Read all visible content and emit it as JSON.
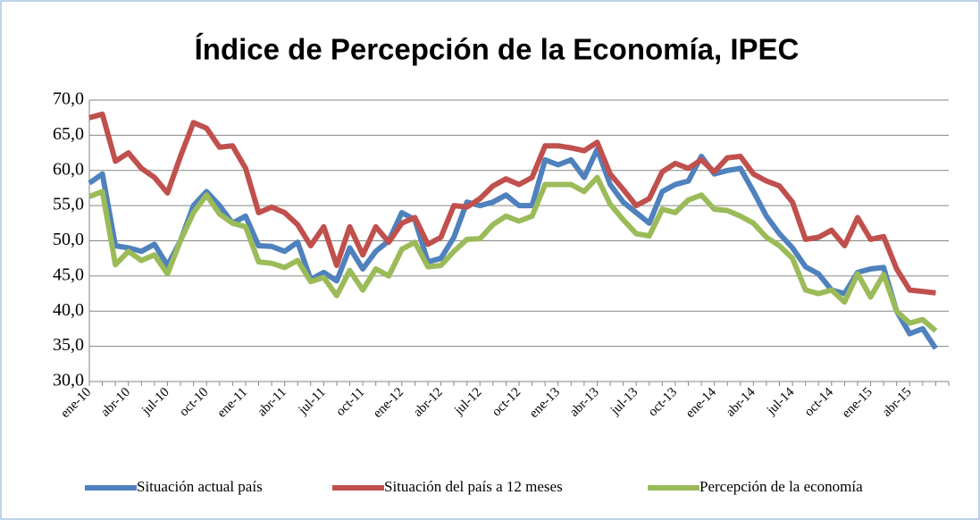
{
  "chart_data": {
    "type": "line",
    "title": "Índice de Percepción de la Economía, IPEC",
    "categories": [
      "ene-10",
      null,
      null,
      "abr-10",
      null,
      null,
      "jul-10",
      null,
      null,
      "oct-10",
      null,
      null,
      "ene-11",
      null,
      null,
      "abr-11",
      null,
      null,
      "jul-11",
      null,
      null,
      "oct-11",
      null,
      null,
      "ene-12",
      null,
      null,
      "abr-12",
      null,
      null,
      "jul-12",
      null,
      null,
      "oct-12",
      null,
      null,
      "ene-13",
      null,
      null,
      "abr-13",
      null,
      null,
      "jul-13",
      null,
      null,
      "oct-13",
      null,
      null,
      "ene-14",
      null,
      null,
      "abr-14",
      null,
      null,
      "jul-14",
      null,
      null,
      "oct-14",
      null,
      null,
      "ene-15",
      null,
      null,
      "abr-15",
      null,
      null
    ],
    "series": [
      {
        "name": "Situación actual país",
        "color": "#4f81bd",
        "values": [
          58.2,
          59.5,
          49.3,
          49,
          48.5,
          49.5,
          46.5,
          50,
          55,
          57,
          55,
          52.5,
          53.5,
          49.3,
          49.2,
          48.5,
          49.8,
          44.5,
          45.5,
          44.3,
          49,
          46,
          48.5,
          50,
          54,
          53,
          47,
          47.5,
          50.5,
          55.5,
          55,
          55.5,
          56.5,
          55,
          55,
          61.5,
          60.8,
          61.5,
          59,
          63,
          58,
          55.5,
          54,
          52.5,
          57,
          58,
          58.5,
          62,
          59.5,
          60,
          60.3,
          57,
          53.5,
          51,
          49,
          46.3,
          45.3,
          43,
          42.5,
          45.5,
          46,
          46.2,
          40,
          36.8,
          37.5,
          34.7
        ]
      },
      {
        "name": "Situación del país a 12 meses",
        "color": "#c0504d",
        "values": [
          67.5,
          68,
          61.3,
          62.5,
          60.3,
          59,
          56.8,
          62,
          66.8,
          66,
          63.3,
          63.5,
          60.3,
          54,
          54.8,
          54,
          52.3,
          49.3,
          52,
          46.5,
          52,
          48,
          52,
          49.8,
          52.5,
          53.3,
          49.5,
          50.5,
          55,
          54.8,
          56,
          57.8,
          58.8,
          58,
          59,
          63.5,
          63.5,
          63.2,
          62.8,
          64,
          59.5,
          57.3,
          55,
          56,
          59.8,
          61,
          60.3,
          61.5,
          59.8,
          61.8,
          62,
          59.5,
          58.5,
          57.8,
          55.5,
          50.2,
          50.5,
          51.5,
          49.3,
          53.3,
          50.2,
          50.6,
          46,
          43,
          42.8,
          42.6
        ]
      },
      {
        "name": "Percepción de la economía",
        "color": "#9bbb59",
        "values": [
          56.3,
          57,
          46.6,
          48.5,
          47.2,
          48,
          45.3,
          50,
          54,
          56.5,
          53.8,
          52.5,
          52,
          47,
          46.8,
          46.2,
          47.2,
          44.2,
          44.8,
          42.2,
          45.8,
          43,
          46,
          45,
          48.8,
          49.8,
          46.3,
          46.5,
          48.5,
          50.2,
          50.3,
          52.3,
          53.5,
          52.8,
          53.5,
          58,
          58,
          58,
          57,
          59,
          55.2,
          53,
          51,
          50.7,
          54.5,
          54,
          55.8,
          56.5,
          54.5,
          54.3,
          53.5,
          52.5,
          50.5,
          49.3,
          47.5,
          43,
          42.5,
          43,
          41.3,
          45.3,
          42,
          45.2,
          40,
          38.3,
          38.8,
          37.2
        ]
      }
    ],
    "ylim": [
      30,
      70
    ],
    "yticks": [
      {
        "value": 30,
        "label": "30,0"
      },
      {
        "value": 35,
        "label": "35,0"
      },
      {
        "value": 40,
        "label": "40,0"
      },
      {
        "value": 45,
        "label": "45,0"
      },
      {
        "value": 50,
        "label": "50,0"
      },
      {
        "value": 55,
        "label": "55,0"
      },
      {
        "value": 60,
        "label": "60,0"
      },
      {
        "value": 65,
        "label": "65,0"
      },
      {
        "value": 70,
        "label": "70,0"
      }
    ],
    "grid": true
  }
}
